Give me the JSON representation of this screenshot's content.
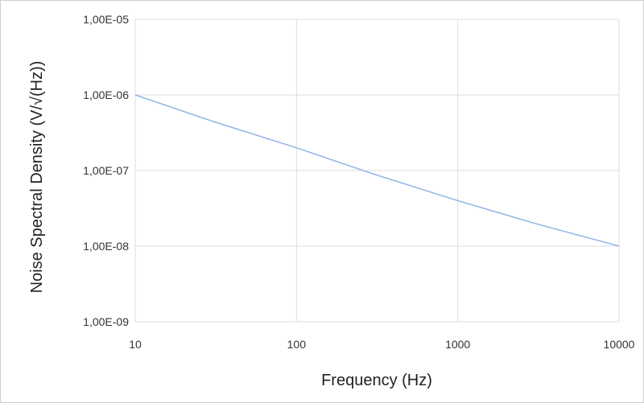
{
  "chart_data": {
    "type": "line",
    "title": "",
    "xlabel": "Frequency (Hz)",
    "ylabel": "Noise Spectral Density (V/√(Hz))",
    "x_scale": "log",
    "y_scale": "log",
    "xlim": [
      10,
      10000
    ],
    "ylim": [
      1e-09,
      1e-05
    ],
    "x_ticks": [
      {
        "value": 10,
        "label": "10"
      },
      {
        "value": 100,
        "label": "100"
      },
      {
        "value": 1000,
        "label": "1000"
      },
      {
        "value": 10000,
        "label": "10000"
      }
    ],
    "y_ticks": [
      {
        "value": 1e-05,
        "label": "1,00E-05"
      },
      {
        "value": 1e-06,
        "label": "1,00E-06"
      },
      {
        "value": 1e-07,
        "label": "1,00E-07"
      },
      {
        "value": 1e-08,
        "label": "1,00E-08"
      },
      {
        "value": 1e-09,
        "label": "1,00E-09"
      }
    ],
    "grid": true,
    "legend": "none",
    "series": [
      {
        "color": "#8fb4e6",
        "x": [
          10,
          30,
          100,
          300,
          1000,
          3000,
          10000
        ],
        "y": [
          1e-06,
          4.5e-07,
          2e-07,
          9e-08,
          4e-08,
          2e-08,
          1e-08
        ]
      }
    ]
  }
}
